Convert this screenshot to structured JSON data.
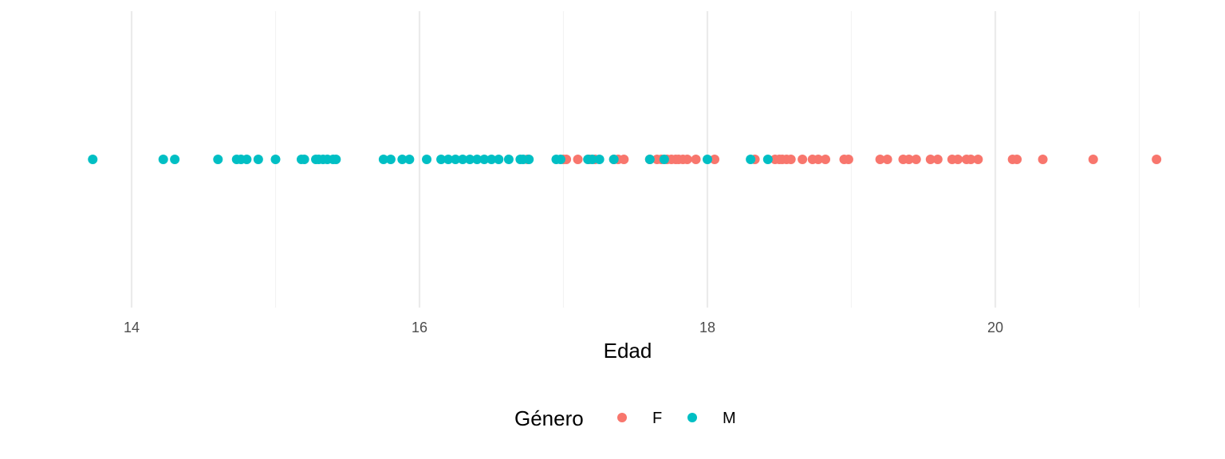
{
  "chart_data": {
    "type": "scatter",
    "title": "",
    "xlabel": "Edad",
    "ylabel": "",
    "xlim": [
      13.6,
      21.2
    ],
    "xticks": [
      14,
      16,
      18,
      20
    ],
    "xtick_labels": [
      "14",
      "16",
      "18",
      "20"
    ],
    "grid": "vertical",
    "legend": {
      "title": "Género",
      "position": "bottom"
    },
    "series": [
      {
        "name": "F",
        "color": "#F8766D",
        "x": [
          16.75,
          17.0,
          17.02,
          17.1,
          17.18,
          17.22,
          17.35,
          17.38,
          17.42,
          17.6,
          17.65,
          17.68,
          17.72,
          17.75,
          17.78,
          17.8,
          17.83,
          17.86,
          17.92,
          18.05,
          18.33,
          18.47,
          18.5,
          18.52,
          18.55,
          18.58,
          18.66,
          18.73,
          18.77,
          18.82,
          18.95,
          18.98,
          19.2,
          19.25,
          19.36,
          19.4,
          19.45,
          19.55,
          19.6,
          19.7,
          19.74,
          19.8,
          19.83,
          19.88,
          20.12,
          20.15,
          20.33,
          20.68,
          21.12
        ],
        "y": [
          0,
          0,
          0,
          0,
          0,
          0,
          0,
          0,
          0,
          0,
          0,
          0,
          0,
          0,
          0,
          0,
          0,
          0,
          0,
          0,
          0,
          0,
          0,
          0,
          0,
          0,
          0,
          0,
          0,
          0,
          0,
          0,
          0,
          0,
          0,
          0,
          0,
          0,
          0,
          0,
          0,
          0,
          0,
          0,
          0,
          0,
          0,
          0,
          0
        ]
      },
      {
        "name": "M",
        "color": "#00BFC4",
        "x": [
          13.73,
          14.22,
          14.3,
          14.6,
          14.73,
          14.76,
          14.8,
          14.88,
          15.0,
          15.18,
          15.2,
          15.28,
          15.3,
          15.33,
          15.36,
          15.4,
          15.42,
          15.75,
          15.8,
          15.88,
          15.93,
          16.05,
          16.15,
          16.2,
          16.25,
          16.3,
          16.35,
          16.4,
          16.45,
          16.5,
          16.55,
          16.62,
          16.7,
          16.72,
          16.76,
          16.95,
          16.98,
          17.17,
          17.2,
          17.25,
          17.35,
          17.6,
          17.7,
          18.0,
          18.3,
          18.42
        ],
        "y": [
          0,
          0,
          0,
          0,
          0,
          0,
          0,
          0,
          0,
          0,
          0,
          0,
          0,
          0,
          0,
          0,
          0,
          0,
          0,
          0,
          0,
          0,
          0,
          0,
          0,
          0,
          0,
          0,
          0,
          0,
          0,
          0,
          0,
          0,
          0,
          0,
          0,
          0,
          0,
          0,
          0,
          0,
          0,
          0,
          0,
          0
        ]
      }
    ]
  }
}
